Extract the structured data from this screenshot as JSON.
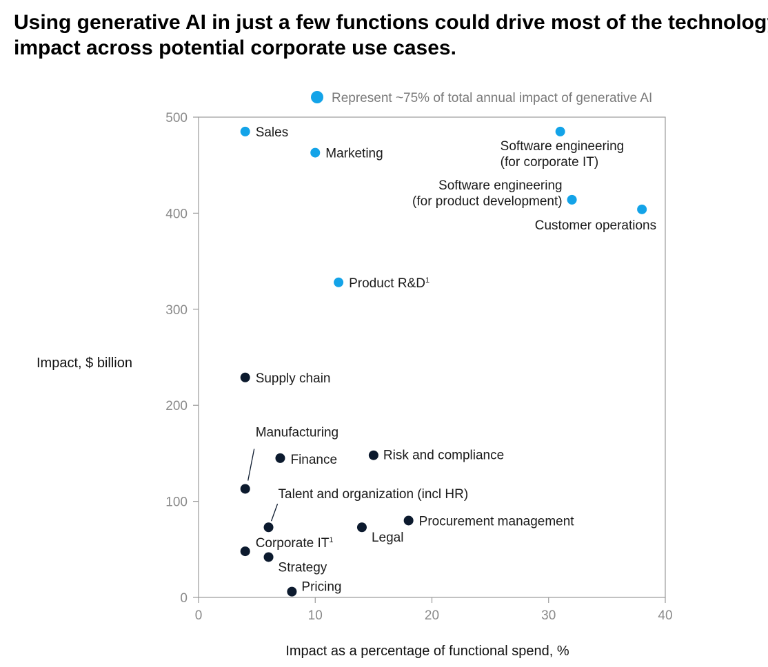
{
  "title": {
    "line1": "Using generative AI in just a few functions could drive most of the technology's",
    "line2": "impact across potential corporate use cases."
  },
  "colors": {
    "highlight": "#13a3e8",
    "other": "#0c1a2e",
    "frame": "#9a9a9a"
  },
  "chart_data": {
    "type": "scatter",
    "title": "Using generative AI in just a few functions could drive most of the technology's impact across potential corporate use cases.",
    "xlabel": "Impact as a percentage of functional spend, %",
    "ylabel": "Impact, $ billion",
    "xlim": [
      0,
      40
    ],
    "ylim": [
      0,
      500
    ],
    "xticks": [
      0,
      10,
      20,
      30,
      40
    ],
    "yticks": [
      0,
      100,
      200,
      300,
      400,
      500
    ],
    "grid": false,
    "legend": {
      "label": "Represent ~75% of total annual impact of generative AI",
      "placement": "top-center"
    },
    "points": [
      {
        "name": "Sales",
        "x": 4,
        "y": 485,
        "highlight": true
      },
      {
        "name": "Marketing",
        "x": 10,
        "y": 463,
        "highlight": true
      },
      {
        "name": "Software engineering (for corporate IT)",
        "lines": [
          "Software engineering",
          "(for corporate IT)"
        ],
        "x": 31,
        "y": 485,
        "highlight": true
      },
      {
        "name": "Software engineering (for product development)",
        "lines": [
          "Software engineering",
          "(for product development)"
        ],
        "x": 32,
        "y": 414,
        "highlight": true
      },
      {
        "name": "Customer operations",
        "x": 38,
        "y": 404,
        "highlight": true
      },
      {
        "name": "Product R&D",
        "footnote": "1",
        "x": 12,
        "y": 328,
        "highlight": true
      },
      {
        "name": "Supply chain",
        "x": 4,
        "y": 229,
        "highlight": false
      },
      {
        "name": "Manufacturing",
        "x": 4,
        "y": 113,
        "highlight": false
      },
      {
        "name": "Finance",
        "x": 7,
        "y": 145,
        "highlight": false
      },
      {
        "name": "Risk and compliance",
        "x": 15,
        "y": 148,
        "highlight": false
      },
      {
        "name": "Talent and organization (incl HR)",
        "x": 6,
        "y": 73,
        "highlight": false
      },
      {
        "name": "Legal",
        "x": 14,
        "y": 73,
        "highlight": false
      },
      {
        "name": "Procurement management",
        "x": 18,
        "y": 80,
        "highlight": false
      },
      {
        "name": "Corporate IT",
        "footnote": "1",
        "x": 4,
        "y": 48,
        "highlight": false
      },
      {
        "name": "Strategy",
        "x": 6,
        "y": 42,
        "highlight": false
      },
      {
        "name": "Pricing",
        "x": 8,
        "y": 6,
        "highlight": false
      }
    ]
  }
}
